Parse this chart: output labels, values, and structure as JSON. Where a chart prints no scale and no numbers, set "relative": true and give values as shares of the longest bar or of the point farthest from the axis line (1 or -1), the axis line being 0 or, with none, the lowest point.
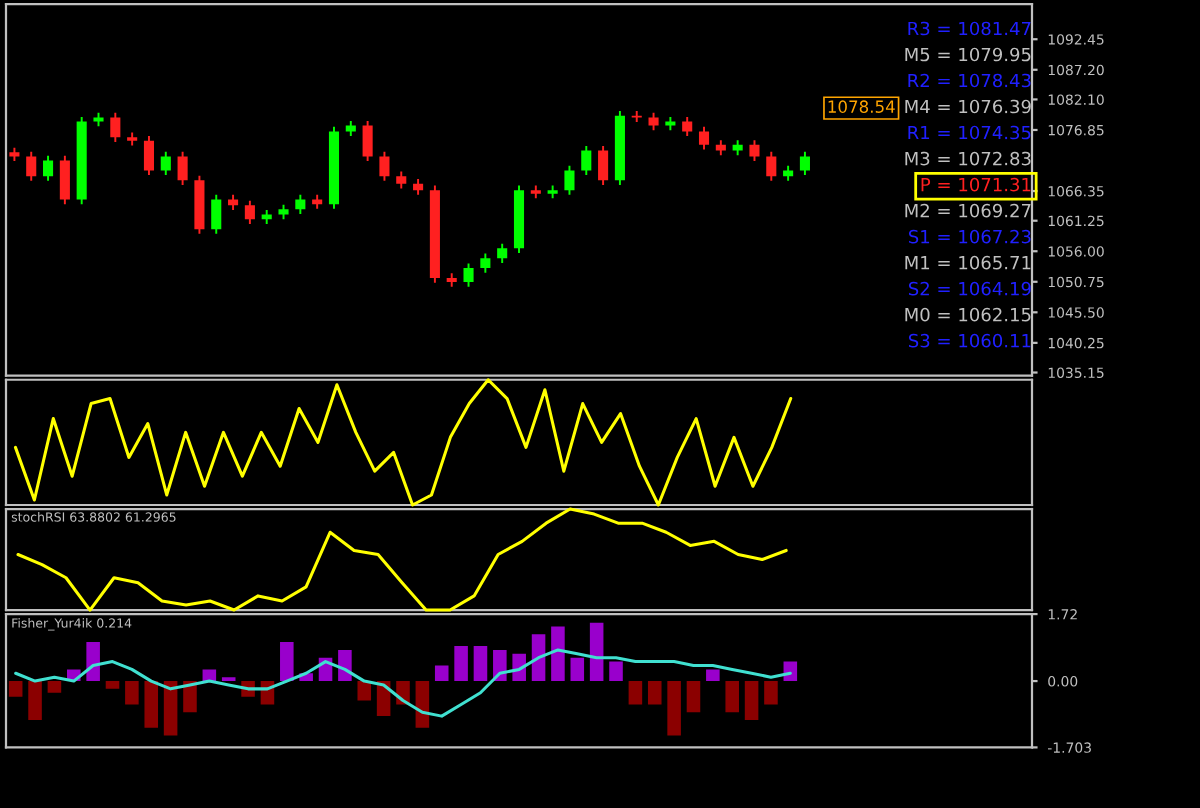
{
  "chart_data": [
    {
      "type": "candlestick",
      "categories": [
        null,
        null,
        null,
        null,
        null,
        null,
        null,
        null,
        null,
        null,
        null,
        null,
        null,
        null,
        null,
        null,
        null,
        null,
        null,
        null,
        null,
        null,
        null,
        null,
        null,
        null,
        null,
        null,
        null,
        null,
        null,
        null,
        null,
        null,
        null,
        null,
        null,
        null,
        null,
        null,
        null,
        null,
        null,
        null,
        null,
        null,
        null,
        null,
        null,
        null,
        null,
        null,
        null,
        null,
        null,
        null,
        null,
        null,
        null,
        null,
        null
      ],
      "ohlc": [
        [
          1073.0,
          1073.8,
          1071.5,
          1072.3
        ],
        [
          1072.3,
          1073.1,
          1068.1,
          1068.9
        ],
        [
          1068.9,
          1072.4,
          1068.1,
          1071.6
        ],
        [
          1071.6,
          1072.4,
          1064.1,
          1064.9
        ],
        [
          1064.9,
          1079.1,
          1064.1,
          1078.3
        ],
        [
          1078.3,
          1079.8,
          1077.5,
          1079.0
        ],
        [
          1079.0,
          1079.8,
          1074.8,
          1075.6
        ],
        [
          1075.6,
          1076.4,
          1074.2,
          1075.0
        ],
        [
          1075.0,
          1075.8,
          1069.1,
          1069.9
        ],
        [
          1069.9,
          1073.1,
          1069.1,
          1072.3
        ],
        [
          1072.3,
          1073.1,
          1067.4,
          1068.2
        ],
        [
          1068.2,
          1069.0,
          1059.0,
          1059.8
        ],
        [
          1059.8,
          1065.7,
          1059.0,
          1064.9
        ],
        [
          1064.9,
          1065.7,
          1063.1,
          1063.9
        ],
        [
          1063.9,
          1064.7,
          1060.7,
          1061.5
        ],
        [
          1061.5,
          1063.1,
          1060.7,
          1062.3
        ],
        [
          1062.3,
          1064.0,
          1061.5,
          1063.2
        ],
        [
          1063.2,
          1065.7,
          1062.4,
          1064.9
        ],
        [
          1064.9,
          1065.7,
          1063.3,
          1064.1
        ],
        [
          1064.1,
          1077.4,
          1063.3,
          1076.6
        ],
        [
          1076.6,
          1078.4,
          1075.8,
          1077.6
        ],
        [
          1077.6,
          1078.4,
          1071.5,
          1072.3
        ],
        [
          1072.3,
          1073.1,
          1068.1,
          1068.9
        ],
        [
          1068.9,
          1069.7,
          1066.8,
          1067.6
        ],
        [
          1067.6,
          1068.4,
          1065.7,
          1066.5
        ],
        [
          1066.5,
          1067.3,
          1050.6,
          1051.4
        ],
        [
          1051.4,
          1052.2,
          1049.9,
          1050.7
        ],
        [
          1050.7,
          1053.9,
          1049.9,
          1053.1
        ],
        [
          1053.1,
          1055.6,
          1052.3,
          1054.8
        ],
        [
          1054.8,
          1057.3,
          1054.0,
          1056.5
        ],
        [
          1056.5,
          1067.3,
          1055.7,
          1066.5
        ],
        [
          1066.5,
          1067.3,
          1065.1,
          1065.9
        ],
        [
          1065.9,
          1067.3,
          1065.1,
          1066.5
        ],
        [
          1066.5,
          1070.7,
          1065.7,
          1069.9
        ],
        [
          1069.9,
          1074.1,
          1069.1,
          1073.3
        ],
        [
          1073.3,
          1074.1,
          1067.4,
          1068.2
        ],
        [
          1068.2,
          1080.1,
          1067.4,
          1079.3
        ],
        [
          1079.3,
          1080.1,
          1078.2,
          1079.0
        ],
        [
          1079.0,
          1079.8,
          1076.8,
          1077.6
        ],
        [
          1077.6,
          1079.1,
          1076.8,
          1078.3
        ],
        [
          1078.3,
          1079.1,
          1075.8,
          1076.6
        ],
        [
          1076.6,
          1077.4,
          1073.5,
          1074.3
        ],
        [
          1074.3,
          1075.1,
          1072.5,
          1073.3
        ],
        [
          1073.3,
          1075.1,
          1072.5,
          1074.3
        ],
        [
          1074.3,
          1075.1,
          1071.5,
          1072.3
        ],
        [
          1072.3,
          1073.1,
          1068.1,
          1068.9
        ],
        [
          1068.9,
          1070.7,
          1068.1,
          1069.9
        ],
        [
          1069.9,
          1073.1,
          1069.1,
          1072.3
        ],
        null,
        null,
        null,
        null,
        null,
        null,
        null,
        null,
        null,
        null,
        null,
        null,
        null
      ],
      "ylim": [
        1034.6,
        1098.5
      ],
      "yticks": [
        1035.15,
        1040.25,
        {
          "value": 1045.5,
          "label": "1045.50"
        },
        1050.75,
        {
          "value": 1056.0,
          "label": "1056.00"
        },
        1061.25,
        1066.35,
        1076.85,
        {
          "value": 1082.1,
          "label": "1082.10"
        },
        {
          "value": 1087.2,
          "label": "1087.20"
        },
        1092.45
      ],
      "tick_labels": "y",
      "annotations": [
        "1078.54",
        "R3 = 1081.47",
        "M5 = 1079.95",
        "R2 = 1078.43",
        "M4 = 1076.39",
        "R1 = 1074.35",
        "M3 = 1072.83",
        "P = 1071.31",
        "M2 = 1069.27",
        "S1 = 1067.23",
        "M1 = 1065.71",
        "S2 = 1064.19",
        "M0 = 1062.15",
        "S3 = 1060.11"
      ]
    },
    {
      "type": "line",
      "relative": true,
      "categories": [
        null,
        null,
        null,
        null,
        null,
        null,
        null,
        null,
        null,
        null,
        null,
        null,
        null,
        null,
        null,
        null,
        null,
        null,
        null,
        null,
        null,
        null,
        null,
        null,
        null,
        null,
        null,
        null,
        null,
        null,
        null,
        null,
        null,
        null,
        null,
        null,
        null,
        null,
        null,
        null,
        null,
        null
      ],
      "series": [
        {
          "color": "#ffff00",
          "values": [
            0.46,
            0.04,
            0.69,
            0.23,
            0.81,
            0.85,
            0.38,
            0.65,
            0.08,
            0.58,
            0.15,
            0.58,
            0.23,
            0.58,
            0.31,
            0.77,
            0.5,
            0.96,
            0.58,
            0.27,
            0.42,
            0,
            0.08,
            0.54,
            0.81,
            1,
            0.85,
            0.46,
            0.92,
            0.27,
            0.81,
            0.5,
            0.73,
            0.31,
            0,
            0.38,
            0.69,
            0.15,
            0.54,
            0.15,
            0.46,
            0.85
          ]
        }
      ]
    },
    {
      "type": "line",
      "relative": true,
      "title": "stochRSI 63.8802 61.2965",
      "categories": [
        null,
        null,
        null,
        null,
        null,
        null,
        null,
        null,
        null,
        null,
        null,
        null,
        null,
        null,
        null,
        null,
        null,
        null,
        null,
        null,
        null,
        null,
        null,
        null,
        null,
        null,
        null,
        null,
        null,
        null,
        null,
        null,
        null
      ],
      "series": [
        {
          "color": "#ffff00",
          "values": [
            0.55,
            0.45,
            0.32,
            0,
            0.32,
            0.27,
            0.09,
            0.05,
            0.09,
            0,
            0.14,
            0.09,
            0.23,
            0.77,
            0.59,
            0.55,
            0.27,
            0,
            0,
            0.14,
            0.55,
            0.68,
            0.86,
            1,
            0.95,
            0.86,
            0.86,
            0.77,
            0.64,
            0.68,
            0.55,
            0.5,
            0.59
          ]
        }
      ]
    },
    {
      "type": "bar",
      "title": "Fisher_Yur4ik 0.214",
      "categories": [
        null,
        null,
        null,
        null,
        null,
        null,
        null,
        null,
        null,
        null,
        null,
        null,
        null,
        null,
        null,
        null,
        null,
        null,
        null,
        null,
        null,
        null,
        null,
        null,
        null,
        null,
        null,
        null,
        null,
        null,
        null,
        null,
        null,
        null,
        null,
        null,
        null,
        null,
        null,
        null,
        null
      ],
      "ylim": [
        -1.703,
        1.72
      ],
      "yticks": [
        -1.703,
        {
          "value": 0,
          "label": "0.00"
        },
        1.72
      ],
      "tick_labels": "y",
      "series": [
        {
          "color": "#9900cc",
          "values": [
            null,
            null,
            null,
            0.3,
            1.0,
            null,
            null,
            null,
            null,
            null,
            0.3,
            0.1,
            null,
            null,
            1.0,
            0.2,
            0.6,
            0.8,
            null,
            null,
            null,
            null,
            0.4,
            0.9,
            0.9,
            0.8,
            0.7,
            1.2,
            1.4,
            0.6,
            1.5,
            0.5,
            null,
            null,
            null,
            null,
            0.3,
            null,
            null,
            null,
            0.5
          ]
        },
        {
          "color": "#8b0000",
          "values": [
            -0.4,
            -1.0,
            -0.3,
            null,
            null,
            -0.2,
            -0.6,
            -1.2,
            -1.4,
            -0.8,
            null,
            null,
            -0.4,
            -0.6,
            null,
            null,
            null,
            null,
            -0.5,
            -0.9,
            -0.6,
            -1.2,
            null,
            null,
            null,
            null,
            null,
            null,
            null,
            null,
            null,
            null,
            -0.6,
            -0.6,
            -1.4,
            -0.8,
            null,
            -0.8,
            -1.0,
            -0.6,
            null
          ]
        },
        {
          "type": "line",
          "color": "#40e0d0",
          "values": [
            0.2,
            0.0,
            0.1,
            0.0,
            0.4,
            0.5,
            0.3,
            0.0,
            -0.2,
            -0.1,
            0.0,
            -0.1,
            -0.2,
            -0.2,
            0.0,
            0.2,
            0.5,
            0.3,
            0.0,
            -0.1,
            -0.5,
            -0.8,
            -0.9,
            -0.6,
            -0.3,
            0.2,
            0.3,
            0.6,
            0.8,
            0.7,
            0.6,
            0.6,
            0.5,
            0.5,
            0.5,
            0.4,
            0.4,
            0.3,
            0.2,
            0.1,
            0.2
          ]
        }
      ]
    }
  ]
}
